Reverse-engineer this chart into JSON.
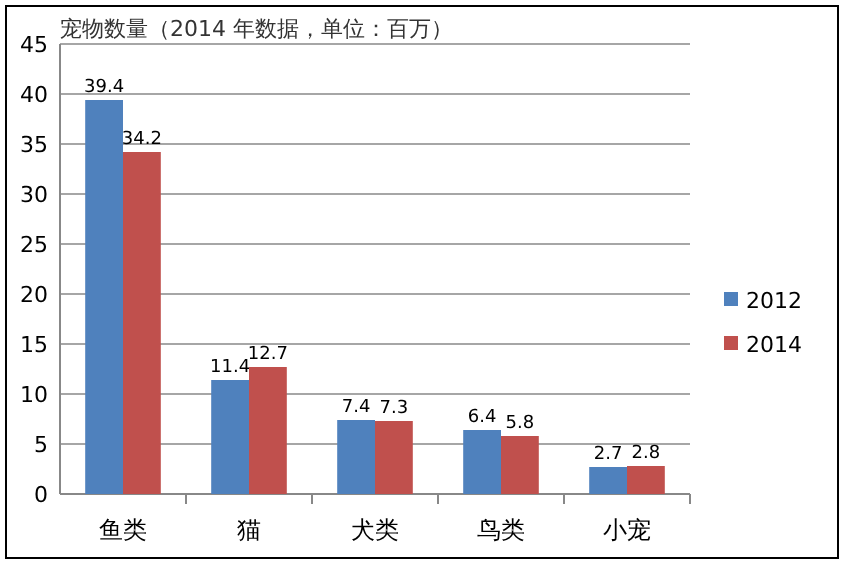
{
  "chart_data": {
    "type": "bar",
    "title": "宠物数量（2014 年数据，单位：百万）",
    "categories": [
      "鱼类",
      "猫",
      "犬类",
      "鸟类",
      "小宠"
    ],
    "series": [
      {
        "name": "2012",
        "color": "#4f81bd",
        "values": [
          39.4,
          11.4,
          7.4,
          6.4,
          2.7
        ]
      },
      {
        "name": "2014",
        "color": "#c0504d",
        "values": [
          34.2,
          12.7,
          7.3,
          5.8,
          2.8
        ]
      }
    ],
    "ylim": [
      0,
      45
    ],
    "yticks": [
      0,
      5,
      10,
      15,
      20,
      25,
      30,
      35,
      40,
      45
    ],
    "grid": "y",
    "legend": "right",
    "data_labels": true
  }
}
